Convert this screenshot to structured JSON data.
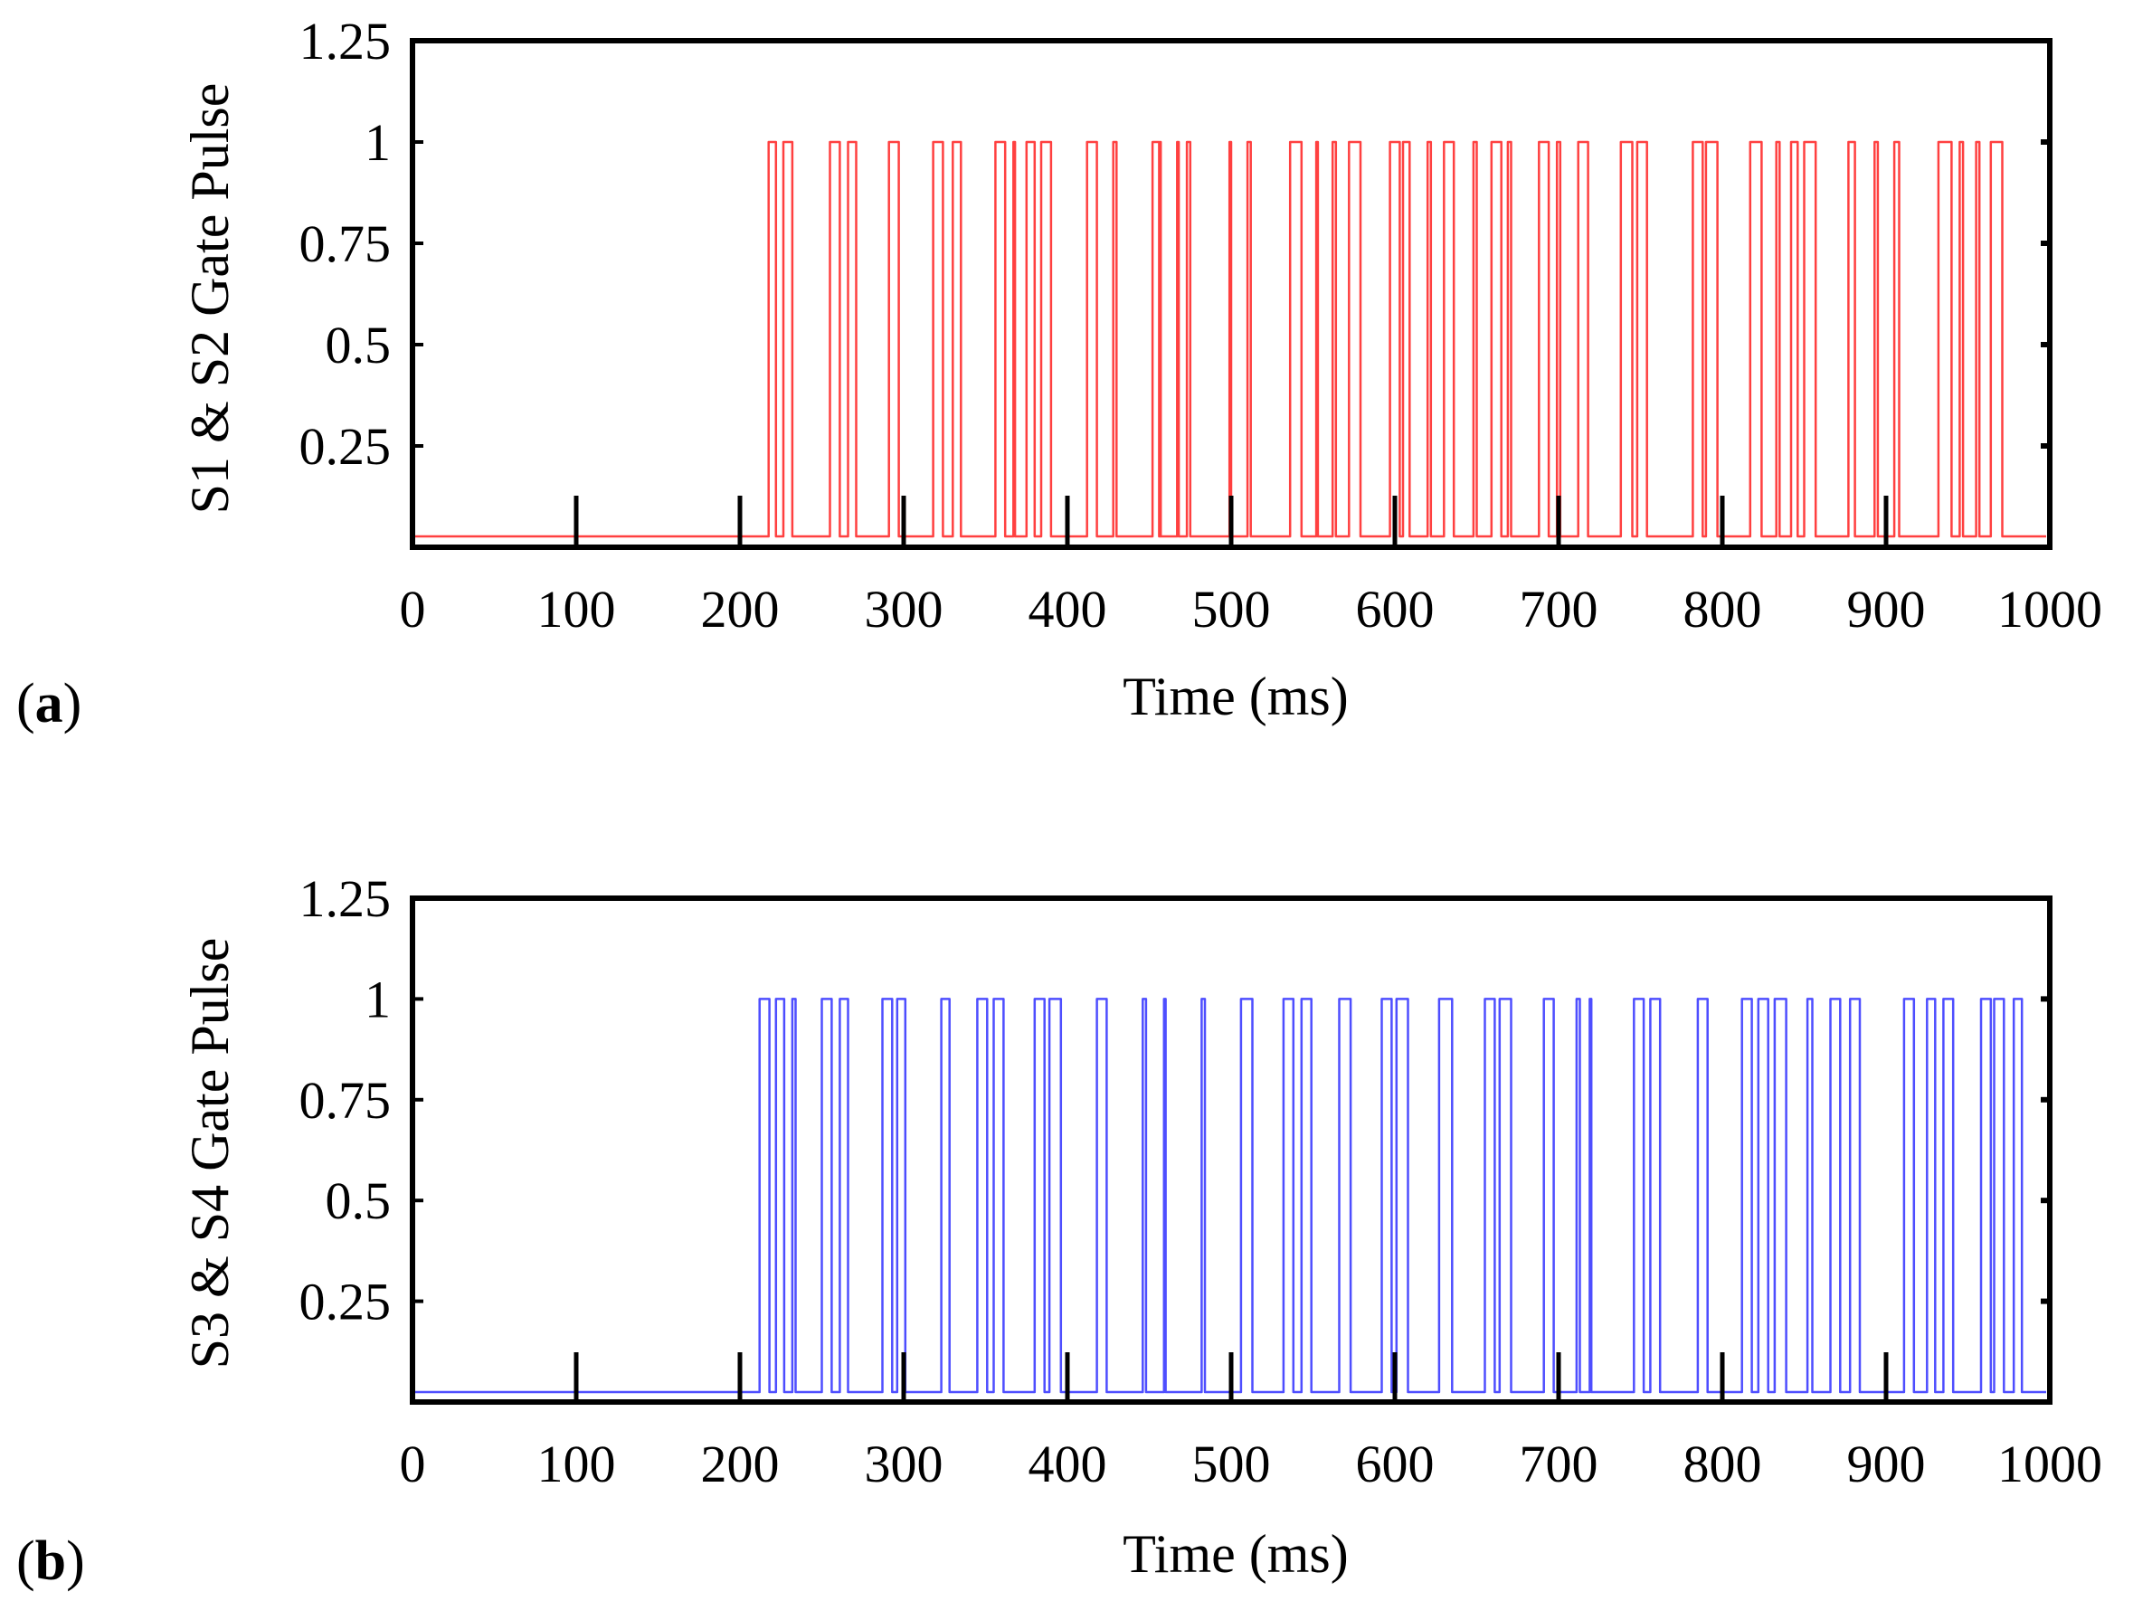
{
  "chart_data": [
    {
      "panel": "(a)",
      "panel_letter": "a",
      "type": "line",
      "title": "",
      "xlabel": "Time (ms)",
      "ylabel": "S1 & S2 Gate Pulse",
      "xlim": [
        0,
        1000
      ],
      "ylim": [
        0,
        1.25
      ],
      "x_ticks": [
        0,
        100,
        200,
        300,
        400,
        500,
        600,
        700,
        800,
        900,
        1000
      ],
      "x_tick_labels": [
        "0",
        "100",
        "200",
        "300",
        "400",
        "500",
        "600",
        "700",
        "800",
        "900",
        "1000"
      ],
      "y_ticks": [
        0.25,
        0.5,
        0.75,
        1,
        1.25
      ],
      "y_tick_labels": [
        "0.25",
        "0.5",
        "0.75",
        "1",
        "1.25"
      ],
      "grid": false,
      "color": "#ff2b2b",
      "series": [
        {
          "name": "S1 & S2 gate pulse",
          "low": 0,
          "high": 1,
          "pulses": [
            [
              217.5,
              222
            ],
            [
              226.5,
              232
            ],
            [
              255,
              261
            ],
            [
              266,
              271
            ],
            [
              291,
              297
            ],
            [
              318,
              324
            ],
            [
              330,
              335
            ],
            [
              356,
              362
            ],
            [
              367,
              368
            ],
            [
              375,
              380
            ],
            [
              384,
              390
            ],
            [
              412,
              418
            ],
            [
              428,
              430
            ],
            [
              452,
              456
            ],
            [
              456.5,
              457
            ],
            [
              467,
              468
            ],
            [
              473,
              475
            ],
            [
              499,
              500
            ],
            [
              510,
              512
            ],
            [
              536,
              543
            ],
            [
              552,
              553
            ],
            [
              562,
              564
            ],
            [
              572,
              579
            ],
            [
              597,
              603
            ],
            [
              605,
              609
            ],
            [
              620,
              622
            ],
            [
              630,
              636
            ],
            [
              648,
              650
            ],
            [
              659,
              665
            ],
            [
              669,
              671
            ],
            [
              688,
              694
            ],
            [
              699,
              701
            ],
            [
              712,
              718
            ],
            [
              738,
              745
            ],
            [
              748,
              754
            ],
            [
              782,
              788
            ],
            [
              790,
              797
            ],
            [
              817,
              824
            ],
            [
              833,
              835
            ],
            [
              842,
              846
            ],
            [
              850,
              857
            ],
            [
              877,
              881
            ],
            [
              893,
              895
            ],
            [
              905,
              908
            ],
            [
              932,
              940
            ],
            [
              945,
              947
            ],
            [
              955,
              957
            ],
            [
              964,
              971
            ]
          ]
        }
      ]
    },
    {
      "panel": "(b)",
      "panel_letter": "b",
      "type": "line",
      "title": "",
      "xlabel": "Time (ms)",
      "ylabel": "S3 & S4 Gate Pulse",
      "xlim": [
        0,
        1000
      ],
      "ylim": [
        0,
        1.25
      ],
      "x_ticks": [
        0,
        100,
        200,
        300,
        400,
        500,
        600,
        700,
        800,
        900,
        1000
      ],
      "x_tick_labels": [
        "0",
        "100",
        "200",
        "300",
        "400",
        "500",
        "600",
        "700",
        "800",
        "900",
        "1000"
      ],
      "y_ticks": [
        0.25,
        0.5,
        0.75,
        1,
        1.25
      ],
      "y_tick_labels": [
        "0.25",
        "0.5",
        "0.75",
        "1",
        "1.25"
      ],
      "grid": false,
      "color": "#3b3bff",
      "series": [
        {
          "name": "S3 & S4 gate pulse",
          "low": 0,
          "high": 1,
          "pulses": [
            [
              212,
              218
            ],
            [
              222,
              227
            ],
            [
              232,
              234
            ],
            [
              250,
              256
            ],
            [
              261,
              266
            ],
            [
              287,
              293
            ],
            [
              296,
              301
            ],
            [
              323,
              328
            ],
            [
              345,
              351
            ],
            [
              355,
              361
            ],
            [
              380,
              386
            ],
            [
              389,
              396
            ],
            [
              418,
              424
            ],
            [
              446,
              448
            ],
            [
              459,
              460
            ],
            [
              482,
              484
            ],
            [
              506,
              513
            ],
            [
              532,
              538
            ],
            [
              543,
              549
            ],
            [
              566,
              573
            ],
            [
              592,
              598
            ],
            [
              601,
              608
            ],
            [
              627,
              635
            ],
            [
              655,
              661
            ],
            [
              664,
              671
            ],
            [
              691,
              697
            ],
            [
              711,
              713
            ],
            [
              719,
              720
            ],
            [
              746,
              752
            ],
            [
              756,
              762
            ],
            [
              785,
              791
            ],
            [
              812,
              818
            ],
            [
              822,
              828
            ],
            [
              832,
              839
            ],
            [
              852,
              855
            ],
            [
              866,
              872
            ],
            [
              878,
              884
            ],
            [
              911,
              917
            ],
            [
              925,
              930
            ],
            [
              935,
              941
            ],
            [
              958,
              964
            ],
            [
              966,
              972
            ],
            [
              978,
              983
            ]
          ]
        }
      ]
    }
  ]
}
